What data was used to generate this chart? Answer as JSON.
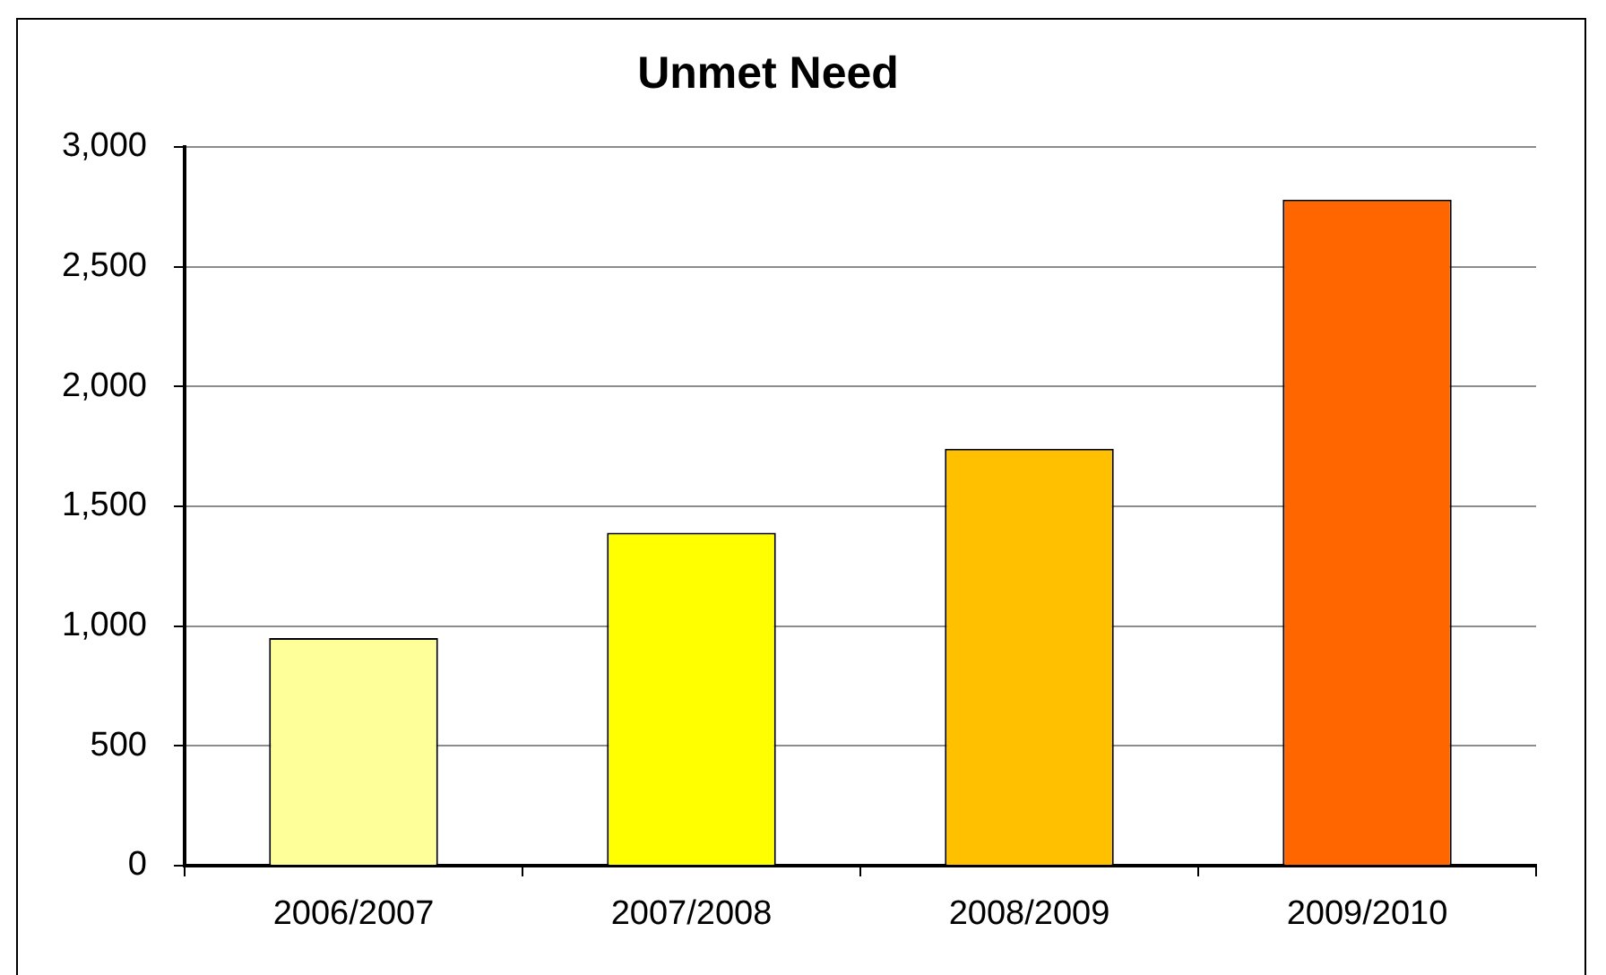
{
  "chart_data": {
    "type": "bar",
    "title": "Unmet Need",
    "categories": [
      "2006/2007",
      "2007/2008",
      "2008/2009",
      "2009/2010"
    ],
    "values": [
      950,
      1390,
      1740,
      2780
    ],
    "colors": [
      "#ffff99",
      "#ffff00",
      "#ffc000",
      "#ff6600"
    ],
    "ylim": [
      0,
      3000
    ],
    "yticks": [
      0,
      500,
      {
        "value": 1000,
        "label": "1,000"
      },
      {
        "value": 1500,
        "label": "1,500"
      },
      {
        "value": 2000,
        "label": "2,000"
      },
      {
        "value": 2500,
        "label": "2,500"
      },
      {
        "value": 3000,
        "label": "3,000"
      }
    ],
    "grid": "y"
  }
}
